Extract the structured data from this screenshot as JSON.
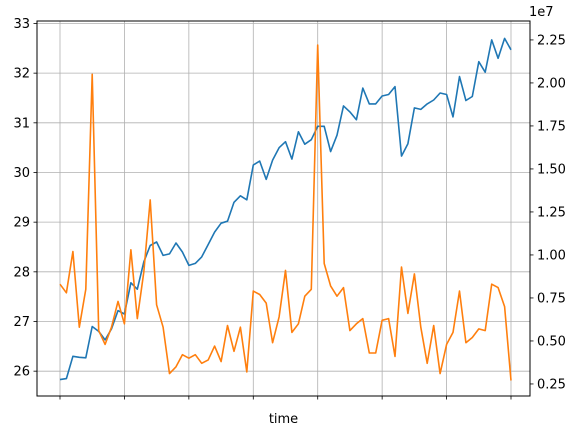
{
  "chart_data": {
    "type": "line",
    "xlabel": "time",
    "grid": true,
    "x_tick_count": 8,
    "y_left": {
      "ticks": [
        26,
        27,
        28,
        29,
        30,
        31,
        32,
        33
      ],
      "tick_labels": [
        "26",
        "27",
        "28",
        "29",
        "30",
        "31",
        "32",
        "33"
      ],
      "lim": [
        25.5,
        33.05
      ]
    },
    "y_right": {
      "ticks": [
        0.25,
        0.5,
        0.75,
        1.0,
        1.25,
        1.5,
        1.75,
        2.0,
        2.25
      ],
      "tick_labels": [
        "0.25",
        "0.50",
        "0.75",
        "1.00",
        "1.25",
        "1.50",
        "1.75",
        "2.00",
        "2.25"
      ],
      "lim": [
        0.18,
        2.36
      ],
      "offset_text": "1e7"
    },
    "series": [
      {
        "axis": "left",
        "color": "#1f77b4",
        "values": [
          25.83,
          25.85,
          26.3,
          26.28,
          26.27,
          26.9,
          26.8,
          26.63,
          26.85,
          27.22,
          27.15,
          27.78,
          27.65,
          28.2,
          28.53,
          28.6,
          28.33,
          28.36,
          28.58,
          28.4,
          28.13,
          28.17,
          28.3,
          28.55,
          28.8,
          28.98,
          29.02,
          29.4,
          29.53,
          29.45,
          30.15,
          30.23,
          29.86,
          30.25,
          30.5,
          30.62,
          30.27,
          30.82,
          30.57,
          30.66,
          30.93,
          30.93,
          30.42,
          30.75,
          31.34,
          31.22,
          31.06,
          31.7,
          31.38,
          31.38,
          31.54,
          31.57,
          31.73,
          30.33,
          30.58,
          31.3,
          31.27,
          31.38,
          31.46,
          31.6,
          31.57,
          31.12,
          31.93,
          31.45,
          31.53,
          32.23,
          32.02,
          32.67,
          32.3,
          32.7,
          32.47
        ]
      },
      {
        "axis": "right",
        "color": "#ff7f0e",
        "values": [
          0.83,
          0.78,
          1.02,
          0.58,
          0.8,
          2.05,
          0.56,
          0.48,
          0.58,
          0.73,
          0.6,
          1.03,
          0.63,
          0.9,
          1.32,
          0.71,
          0.58,
          0.31,
          0.35,
          0.42,
          0.4,
          0.42,
          0.37,
          0.39,
          0.47,
          0.38,
          0.59,
          0.44,
          0.58,
          0.32,
          0.79,
          0.77,
          0.72,
          0.49,
          0.64,
          0.91,
          0.55,
          0.6,
          0.76,
          0.8,
          2.22,
          0.95,
          0.82,
          0.76,
          0.81,
          0.56,
          0.6,
          0.63,
          0.43,
          0.43,
          0.62,
          0.63,
          0.41,
          0.93,
          0.66,
          0.89,
          0.58,
          0.37,
          0.59,
          0.31,
          0.48,
          0.55,
          0.79,
          0.49,
          0.52,
          0.57,
          0.56,
          0.83,
          0.81,
          0.7,
          0.27
        ]
      }
    ]
  }
}
